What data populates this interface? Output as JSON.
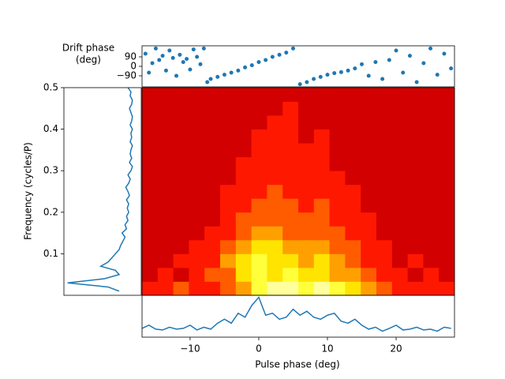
{
  "chart_data": [
    {
      "type": "heatmap",
      "xlabel": "Pulse phase (deg)",
      "ylabel": "Frequency (cycles/P)",
      "xlim": [
        -17,
        28.5
      ],
      "ylim": [
        0,
        0.5
      ],
      "colormap": "hot",
      "clim": [
        0,
        10
      ],
      "xticks": [
        {
          "value": -10,
          "label": "−10"
        },
        0,
        10,
        20
      ],
      "yticks": [
        0.1,
        0.2,
        0.3,
        0.4,
        0.5
      ],
      "values": [
        [
          4,
          4,
          5,
          4,
          4,
          5,
          6,
          8,
          9,
          9,
          8,
          9,
          8,
          7,
          6,
          5,
          4,
          4,
          4,
          4
        ],
        [
          3,
          4,
          3,
          4,
          5,
          5,
          7,
          8,
          7,
          8,
          7,
          7,
          6,
          6,
          5,
          4,
          4,
          3,
          4,
          3
        ],
        [
          3,
          3,
          4,
          4,
          4,
          6,
          7,
          8,
          7,
          7,
          6,
          7,
          6,
          5,
          4,
          4,
          3,
          4,
          3,
          3
        ],
        [
          3,
          3,
          3,
          4,
          4,
          5,
          6,
          7,
          7,
          6,
          6,
          6,
          5,
          5,
          4,
          4,
          3,
          3,
          3,
          3
        ],
        [
          3,
          3,
          3,
          3,
          4,
          4,
          5,
          6,
          6,
          5,
          5,
          5,
          5,
          4,
          4,
          3,
          3,
          3,
          3,
          3
        ],
        [
          3,
          3,
          3,
          3,
          3,
          4,
          5,
          5,
          5,
          5,
          5,
          5,
          4,
          4,
          4,
          3,
          3,
          3,
          3,
          3
        ],
        [
          3,
          3,
          3,
          3,
          3,
          4,
          4,
          5,
          5,
          5,
          4,
          5,
          4,
          4,
          3,
          3,
          3,
          3,
          3,
          3
        ],
        [
          3,
          3,
          3,
          3,
          3,
          4,
          4,
          4,
          5,
          4,
          4,
          4,
          4,
          4,
          3,
          3,
          3,
          3,
          3,
          3
        ],
        [
          3,
          3,
          3,
          3,
          3,
          3,
          4,
          4,
          4,
          4,
          4,
          4,
          4,
          3,
          3,
          3,
          3,
          3,
          3,
          3
        ],
        [
          3,
          3,
          3,
          3,
          3,
          3,
          4,
          4,
          4,
          4,
          4,
          4,
          3,
          3,
          3,
          3,
          3,
          3,
          3,
          3
        ],
        [
          3,
          3,
          3,
          3,
          3,
          3,
          3,
          4,
          4,
          4,
          4,
          4,
          3,
          3,
          3,
          3,
          3,
          3,
          3,
          3
        ],
        [
          3,
          3,
          3,
          3,
          3,
          3,
          3,
          4,
          4,
          4,
          3,
          4,
          3,
          3,
          3,
          3,
          3,
          3,
          3,
          3
        ],
        [
          3,
          3,
          3,
          3,
          3,
          3,
          3,
          3,
          4,
          4,
          3,
          3,
          3,
          3,
          3,
          3,
          3,
          3,
          3,
          3
        ],
        [
          3,
          3,
          3,
          3,
          3,
          3,
          3,
          3,
          3,
          4,
          3,
          3,
          3,
          3,
          3,
          3,
          3,
          3,
          3,
          3
        ],
        [
          3,
          3,
          3,
          3,
          3,
          3,
          3,
          3,
          3,
          3,
          3,
          3,
          3,
          3,
          3,
          3,
          3,
          3,
          3,
          3
        ]
      ]
    },
    {
      "type": "scatter",
      "ylabel": [
        "Drift phase",
        "(deg)"
      ],
      "color": "#1f77b4",
      "xlim": [
        -17,
        28.5
      ],
      "ylim": [
        -195,
        195
      ],
      "yticks": [
        {
          "value": -90,
          "label": "−90"
        },
        0,
        90
      ],
      "x": [
        -16.5,
        -16,
        -15.5,
        -15,
        -14.5,
        -14,
        -13.5,
        -13,
        -12.5,
        -12,
        -11.5,
        -11,
        -10.5,
        -10,
        -9.5,
        -9,
        -8.5,
        -8,
        -7.5,
        -7,
        -6,
        -5,
        -4,
        -3,
        -2,
        -1,
        0,
        1,
        2,
        3,
        4,
        5,
        6,
        7,
        8,
        9,
        10,
        11,
        12,
        13,
        14,
        15,
        16,
        17,
        18,
        19,
        20,
        21,
        22,
        23,
        24,
        25,
        26,
        27,
        28
      ],
      "values": [
        120,
        -60,
        30,
        170,
        60,
        100,
        -40,
        150,
        80,
        -90,
        110,
        40,
        70,
        -30,
        160,
        90,
        20,
        170,
        -150,
        -120,
        -100,
        -80,
        -60,
        -40,
        -10,
        10,
        40,
        60,
        90,
        110,
        130,
        170,
        -170,
        -150,
        -120,
        -100,
        -80,
        -65,
        -55,
        -40,
        -20,
        20,
        -90,
        40,
        -120,
        60,
        150,
        -60,
        100,
        -150,
        30,
        170,
        -80,
        120,
        -20
      ]
    },
    {
      "type": "line",
      "color": "#1f77b4",
      "xlim": [
        -17,
        28.5
      ],
      "ylim": [
        0,
        1.05
      ],
      "x": [
        -17,
        -16,
        -15,
        -14,
        -13,
        -12,
        -11,
        -10,
        -9,
        -8,
        -7,
        -6,
        -5,
        -4,
        -3,
        -2,
        -1,
        0,
        1,
        2,
        3,
        4,
        5,
        6,
        7,
        8,
        9,
        10,
        11,
        12,
        13,
        14,
        15,
        16,
        17,
        18,
        19,
        20,
        21,
        22,
        23,
        24,
        25,
        26,
        27,
        28
      ],
      "values": [
        0.22,
        0.3,
        0.2,
        0.18,
        0.25,
        0.2,
        0.22,
        0.3,
        0.18,
        0.25,
        0.2,
        0.35,
        0.45,
        0.35,
        0.6,
        0.5,
        0.8,
        1.0,
        0.55,
        0.6,
        0.45,
        0.5,
        0.7,
        0.55,
        0.65,
        0.5,
        0.45,
        0.55,
        0.6,
        0.4,
        0.35,
        0.45,
        0.3,
        0.2,
        0.25,
        0.15,
        0.22,
        0.3,
        0.18,
        0.2,
        0.25,
        0.18,
        0.2,
        0.15,
        0.25,
        0.22
      ]
    },
    {
      "type": "line",
      "orientation": "horizontal",
      "inverted": true,
      "color": "#1f77b4",
      "xlim": [
        0,
        0.5
      ],
      "ylim": [
        0,
        1.05
      ],
      "x": [
        0.01,
        0.02,
        0.03,
        0.04,
        0.05,
        0.06,
        0.07,
        0.08,
        0.09,
        0.1,
        0.11,
        0.12,
        0.13,
        0.14,
        0.15,
        0.16,
        0.17,
        0.18,
        0.19,
        0.2,
        0.21,
        0.22,
        0.23,
        0.24,
        0.25,
        0.26,
        0.27,
        0.28,
        0.29,
        0.3,
        0.31,
        0.32,
        0.33,
        0.34,
        0.35,
        0.36,
        0.37,
        0.38,
        0.39,
        0.4,
        0.41,
        0.42,
        0.43,
        0.44,
        0.45,
        0.46,
        0.47,
        0.48,
        0.49,
        0.5
      ],
      "values": [
        0.3,
        0.45,
        1.0,
        0.5,
        0.3,
        0.35,
        0.55,
        0.45,
        0.4,
        0.35,
        0.3,
        0.28,
        0.25,
        0.22,
        0.26,
        0.2,
        0.22,
        0.18,
        0.2,
        0.17,
        0.19,
        0.17,
        0.2,
        0.16,
        0.18,
        0.21,
        0.17,
        0.15,
        0.18,
        0.14,
        0.12,
        0.16,
        0.13,
        0.15,
        0.14,
        0.12,
        0.15,
        0.13,
        0.14,
        0.12,
        0.15,
        0.13,
        0.12,
        0.14,
        0.16,
        0.13,
        0.12,
        0.15,
        0.14,
        0.18
      ]
    }
  ]
}
